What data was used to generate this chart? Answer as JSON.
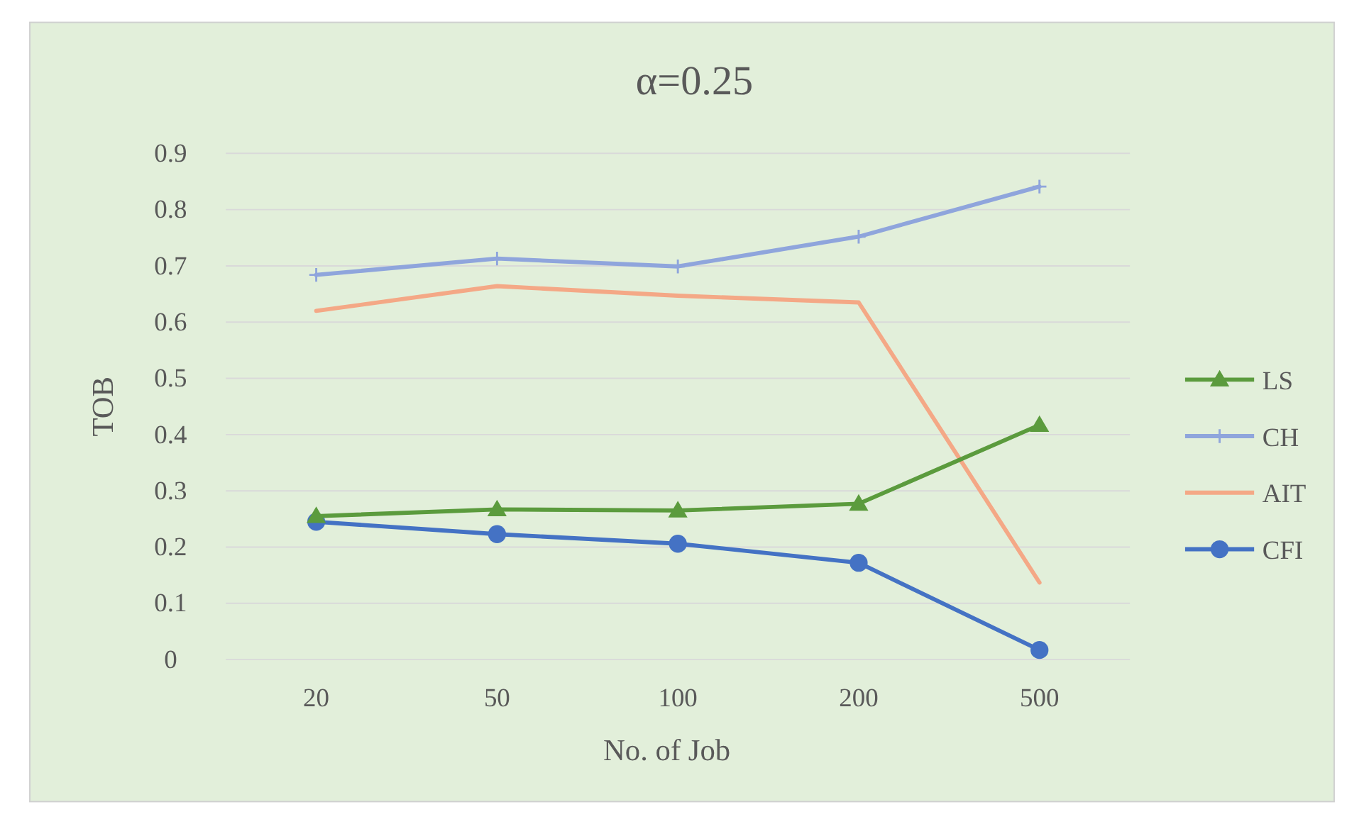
{
  "chart_data": {
    "type": "line",
    "title": "α=0.25",
    "xlabel": "No. of Job",
    "ylabel": "TOB",
    "categories": [
      "20",
      "50",
      "100",
      "200",
      "500"
    ],
    "series": [
      {
        "name": "LS",
        "color": "#5b9b3d",
        "marker": "triangle",
        "values": [
          0.255,
          0.267,
          0.265,
          0.277,
          0.417
        ]
      },
      {
        "name": "CH",
        "color": "#8fa5dc",
        "marker": "cross",
        "values": [
          0.684,
          0.713,
          0.699,
          0.752,
          0.841
        ]
      },
      {
        "name": "AIT",
        "color": "#f4a886",
        "marker": "none",
        "values": [
          0.62,
          0.664,
          0.647,
          0.635,
          0.137
        ]
      },
      {
        "name": "CFI",
        "color": "#4472c4",
        "marker": "circle",
        "values": [
          0.245,
          0.223,
          0.206,
          0.172,
          0.017
        ]
      }
    ],
    "ylim": [
      0,
      0.9
    ],
    "yticks": [
      0,
      0.1,
      0.2,
      0.3,
      0.4,
      0.5,
      0.6,
      0.7,
      0.8,
      0.9
    ],
    "grid": "y",
    "legend": "right"
  }
}
